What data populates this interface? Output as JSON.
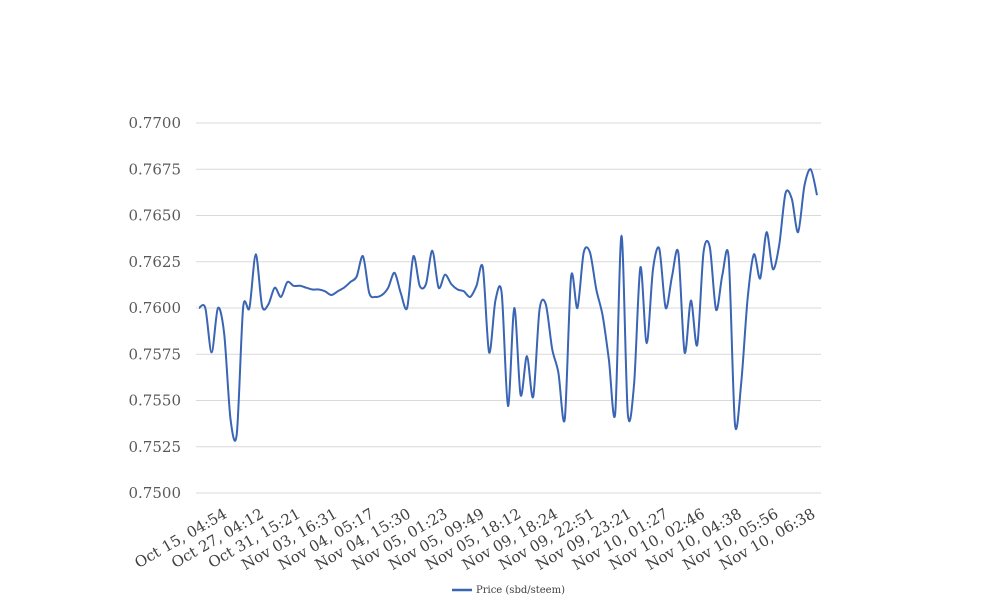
{
  "chart_data": {
    "type": "line",
    "title": "",
    "xlabel": "",
    "ylabel": "",
    "ylim": [
      0.75,
      0.77
    ],
    "yticks": [
      "0.7700",
      "0.7675",
      "0.7650",
      "0.7625",
      "0.7600",
      "0.7575",
      "0.7550",
      "0.7525",
      "0.7500"
    ],
    "xticks": [
      "Oct 15, 04:54",
      "Oct 27, 04:12",
      "Oct 31, 15:21",
      "Nov 03, 16:31",
      "Nov 04, 05:17",
      "Nov 04, 15:30",
      "Nov 05, 01:23",
      "Nov 05, 09:49",
      "Nov 05, 18:12",
      "Nov 09, 18:24",
      "Nov 09, 22:51",
      "Nov 09, 23:21",
      "Nov 10, 01:27",
      "Nov 10, 02:46",
      "Nov 10, 04:38",
      "Nov 10, 05:56",
      "Nov 10, 06:38"
    ],
    "grid": true,
    "legend_position": "bottom",
    "color": "#3a64b4",
    "series": [
      {
        "name": "Price (sbd/steem)",
        "values": [
          0.76,
          0.76,
          0.7576,
          0.76,
          0.7586,
          0.754,
          0.7532,
          0.76,
          0.76,
          0.7629,
          0.7601,
          0.7602,
          0.7611,
          0.7606,
          0.7614,
          0.7612,
          0.7612,
          0.7611,
          0.761,
          0.761,
          0.7609,
          0.7607,
          0.7609,
          0.7611,
          0.7614,
          0.7617,
          0.7628,
          0.7608,
          0.7606,
          0.7607,
          0.7611,
          0.7619,
          0.7608,
          0.76,
          0.7628,
          0.7612,
          0.7613,
          0.7631,
          0.7611,
          0.7618,
          0.7613,
          0.761,
          0.7609,
          0.7606,
          0.7612,
          0.7622,
          0.7576,
          0.7604,
          0.7608,
          0.7547,
          0.76,
          0.7553,
          0.7574,
          0.7552,
          0.7599,
          0.7602,
          0.7578,
          0.7565,
          0.754,
          0.7617,
          0.76,
          0.763,
          0.763,
          0.761,
          0.7596,
          0.7572,
          0.7543,
          0.7639,
          0.7543,
          0.7559,
          0.7622,
          0.7581,
          0.7621,
          0.7632,
          0.76,
          0.7617,
          0.763,
          0.7576,
          0.7604,
          0.758,
          0.763,
          0.7633,
          0.7599,
          0.7618,
          0.7627,
          0.7537,
          0.756,
          0.7605,
          0.7629,
          0.7616,
          0.7641,
          0.7621,
          0.7634,
          0.7662,
          0.7659,
          0.7641,
          0.7666,
          0.7675,
          0.7661
        ]
      }
    ]
  }
}
